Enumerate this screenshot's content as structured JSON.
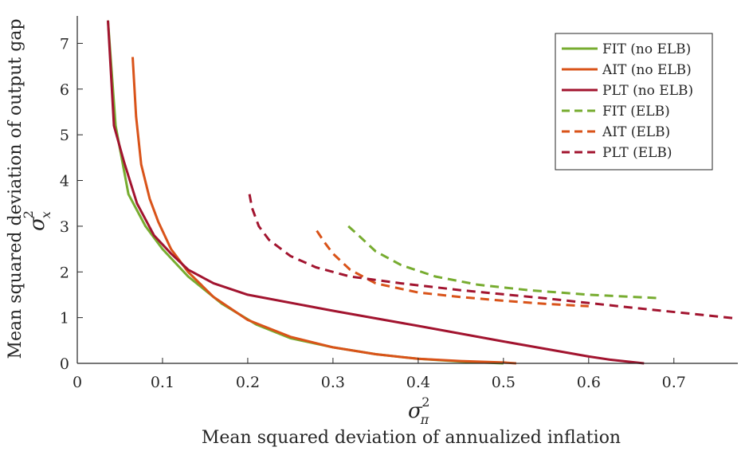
{
  "chart_data": {
    "type": "line",
    "xlabel": "Mean squared deviation of annualized inflation",
    "xsymbol": {
      "base": "σ",
      "sup": "2",
      "sub": "π"
    },
    "ylabel": "Mean squared deviation of output gap",
    "ysymbol": {
      "base": "σ",
      "sup": "2",
      "sub": "x"
    },
    "xlim": [
      0,
      0.775
    ],
    "ylim": [
      0,
      7.6
    ],
    "xticks": [
      0,
      0.1,
      0.2,
      0.3,
      0.4,
      0.5,
      0.6,
      0.7
    ],
    "xtick_labels": [
      "0",
      "0.1",
      "0.2",
      "0.3",
      "0.4",
      "0.5",
      "0.6",
      "0.7"
    ],
    "yticks": [
      0,
      1,
      2,
      3,
      4,
      5,
      6,
      7
    ],
    "ytick_labels": [
      "0",
      "1",
      "2",
      "3",
      "4",
      "5",
      "6",
      "7"
    ],
    "legend_position": "top-right",
    "grid": false,
    "series": [
      {
        "name": "FIT (no ELB)",
        "color": "#77ac30",
        "dash": "solid",
        "x": [
          0.036,
          0.045,
          0.06,
          0.08,
          0.1,
          0.13,
          0.17,
          0.21,
          0.25,
          0.3,
          0.35,
          0.4,
          0.45,
          0.5
        ],
        "y": [
          7.5,
          5.2,
          3.7,
          3.0,
          2.5,
          1.9,
          1.3,
          0.85,
          0.55,
          0.35,
          0.2,
          0.1,
          0.04,
          0.0
        ]
      },
      {
        "name": "AIT (no ELB)",
        "color": "#d95319",
        "dash": "solid",
        "x": [
          0.065,
          0.069,
          0.075,
          0.085,
          0.095,
          0.11,
          0.13,
          0.16,
          0.2,
          0.25,
          0.3,
          0.35,
          0.4,
          0.45,
          0.5,
          0.515
        ],
        "y": [
          6.7,
          5.4,
          4.35,
          3.6,
          3.1,
          2.5,
          2.0,
          1.45,
          0.95,
          0.58,
          0.35,
          0.2,
          0.1,
          0.05,
          0.02,
          0.0
        ]
      },
      {
        "name": "PLT (no ELB)",
        "color": "#a2142f",
        "dash": "solid",
        "x": [
          0.036,
          0.043,
          0.055,
          0.07,
          0.09,
          0.11,
          0.13,
          0.16,
          0.2,
          0.3,
          0.4,
          0.5,
          0.6,
          0.625,
          0.665
        ],
        "y": [
          7.5,
          5.2,
          4.4,
          3.5,
          2.8,
          2.4,
          2.05,
          1.75,
          1.5,
          1.15,
          0.82,
          0.48,
          0.15,
          0.08,
          0.0
        ]
      },
      {
        "name": "FIT (ELB)",
        "color": "#77ac30",
        "dash": "dashed",
        "x": [
          0.318,
          0.33,
          0.35,
          0.38,
          0.42,
          0.47,
          0.53,
          0.6,
          0.68
        ],
        "y": [
          3.0,
          2.8,
          2.45,
          2.15,
          1.9,
          1.72,
          1.6,
          1.5,
          1.43
        ]
      },
      {
        "name": "AIT (ELB)",
        "color": "#d95319",
        "dash": "dashed",
        "x": [
          0.281,
          0.29,
          0.3,
          0.32,
          0.35,
          0.4,
          0.45,
          0.5,
          0.55,
          0.6
        ],
        "y": [
          2.9,
          2.65,
          2.4,
          2.05,
          1.75,
          1.55,
          1.45,
          1.37,
          1.3,
          1.25
        ]
      },
      {
        "name": "PLT (ELB)",
        "color": "#a2142f",
        "dash": "dashed",
        "x": [
          0.202,
          0.205,
          0.213,
          0.225,
          0.25,
          0.28,
          0.32,
          0.38,
          0.45,
          0.55,
          0.65,
          0.775
        ],
        "y": [
          3.7,
          3.4,
          3.0,
          2.7,
          2.35,
          2.1,
          1.9,
          1.75,
          1.6,
          1.42,
          1.22,
          0.98
        ]
      }
    ]
  }
}
